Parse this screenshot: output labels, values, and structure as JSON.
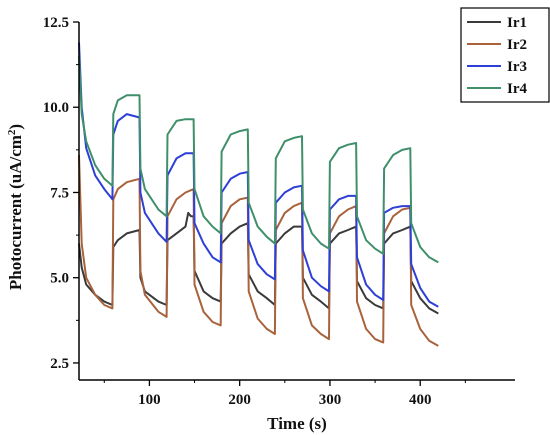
{
  "chart_data": {
    "type": "line",
    "xlabel": "Time (s)",
    "ylabel_main": "Photocurrent (uA/cm",
    "ylabel_sup": "2",
    "ylabel_tail": ")",
    "xlim": [
      22,
      505
    ],
    "ylim": [
      2.0,
      12.5
    ],
    "xticks": [
      100,
      200,
      300,
      400
    ],
    "yticks": [
      2.5,
      5.0,
      7.5,
      10.0,
      12.5
    ],
    "ytick_labels": [
      "2.5",
      "5.0",
      "7.5",
      "10.0",
      "12.5"
    ],
    "grid": false,
    "legend_position": "top-right",
    "light_cycle": {
      "on_times": [
        60,
        120,
        180,
        240,
        300,
        360
      ],
      "off_times": [
        30,
        90,
        150,
        210,
        270,
        330,
        390
      ],
      "end": 420
    },
    "series": [
      {
        "name": "Ir1",
        "color": "#3a3a3a",
        "points": [
          [
            22,
            6.0
          ],
          [
            25,
            5.3
          ],
          [
            30,
            4.8
          ],
          [
            40,
            4.5
          ],
          [
            50,
            4.3
          ],
          [
            59,
            4.2
          ],
          [
            60,
            5.9
          ],
          [
            65,
            6.1
          ],
          [
            75,
            6.3
          ],
          [
            89,
            6.4
          ],
          [
            90,
            5.0
          ],
          [
            95,
            4.6
          ],
          [
            110,
            4.3
          ],
          [
            119,
            4.2
          ],
          [
            120,
            6.1
          ],
          [
            130,
            6.3
          ],
          [
            140,
            6.5
          ],
          [
            143,
            6.9
          ],
          [
            146,
            6.8
          ],
          [
            149,
            6.8
          ],
          [
            150,
            5.2
          ],
          [
            160,
            4.6
          ],
          [
            170,
            4.4
          ],
          [
            179,
            4.3
          ],
          [
            180,
            6.0
          ],
          [
            190,
            6.3
          ],
          [
            200,
            6.5
          ],
          [
            209,
            6.6
          ],
          [
            210,
            5.1
          ],
          [
            220,
            4.6
          ],
          [
            230,
            4.4
          ],
          [
            239,
            4.2
          ],
          [
            240,
            6.0
          ],
          [
            250,
            6.3
          ],
          [
            260,
            6.5
          ],
          [
            269,
            6.5
          ],
          [
            270,
            5.0
          ],
          [
            280,
            4.5
          ],
          [
            290,
            4.3
          ],
          [
            299,
            4.1
          ],
          [
            300,
            6.0
          ],
          [
            310,
            6.3
          ],
          [
            320,
            6.4
          ],
          [
            329,
            6.5
          ],
          [
            330,
            4.9
          ],
          [
            340,
            4.4
          ],
          [
            350,
            4.2
          ],
          [
            359,
            4.1
          ],
          [
            360,
            6.0
          ],
          [
            370,
            6.3
          ],
          [
            380,
            6.4
          ],
          [
            389,
            6.5
          ],
          [
            390,
            4.9
          ],
          [
            400,
            4.4
          ],
          [
            410,
            4.1
          ],
          [
            420,
            3.95
          ]
        ]
      },
      {
        "name": "Ir2",
        "color": "#a8633c",
        "points": [
          [
            22,
            8.6
          ],
          [
            25,
            6.0
          ],
          [
            30,
            5.0
          ],
          [
            40,
            4.5
          ],
          [
            50,
            4.2
          ],
          [
            59,
            4.1
          ],
          [
            60,
            7.3
          ],
          [
            65,
            7.6
          ],
          [
            75,
            7.8
          ],
          [
            89,
            7.9
          ],
          [
            90,
            5.2
          ],
          [
            95,
            4.5
          ],
          [
            110,
            4.0
          ],
          [
            119,
            3.85
          ],
          [
            120,
            6.8
          ],
          [
            130,
            7.3
          ],
          [
            140,
            7.5
          ],
          [
            149,
            7.6
          ],
          [
            150,
            4.8
          ],
          [
            160,
            4.0
          ],
          [
            170,
            3.7
          ],
          [
            179,
            3.6
          ],
          [
            180,
            6.6
          ],
          [
            190,
            7.1
          ],
          [
            200,
            7.3
          ],
          [
            209,
            7.35
          ],
          [
            210,
            4.6
          ],
          [
            220,
            3.8
          ],
          [
            230,
            3.5
          ],
          [
            239,
            3.35
          ],
          [
            240,
            6.4
          ],
          [
            250,
            6.9
          ],
          [
            260,
            7.1
          ],
          [
            269,
            7.2
          ],
          [
            270,
            4.4
          ],
          [
            280,
            3.6
          ],
          [
            290,
            3.35
          ],
          [
            299,
            3.2
          ],
          [
            300,
            6.3
          ],
          [
            310,
            6.8
          ],
          [
            320,
            7.0
          ],
          [
            329,
            7.1
          ],
          [
            330,
            4.3
          ],
          [
            340,
            3.5
          ],
          [
            350,
            3.2
          ],
          [
            359,
            3.1
          ],
          [
            360,
            6.3
          ],
          [
            370,
            6.8
          ],
          [
            380,
            7.0
          ],
          [
            389,
            7.05
          ],
          [
            390,
            4.2
          ],
          [
            400,
            3.5
          ],
          [
            410,
            3.15
          ],
          [
            420,
            3.0
          ]
        ]
      },
      {
        "name": "Ir3",
        "color": "#2e3fd6",
        "points": [
          [
            22,
            11.9
          ],
          [
            25,
            10.0
          ],
          [
            30,
            8.8
          ],
          [
            40,
            8.0
          ],
          [
            50,
            7.6
          ],
          [
            59,
            7.3
          ],
          [
            60,
            9.2
          ],
          [
            65,
            9.6
          ],
          [
            75,
            9.8
          ],
          [
            89,
            9.7
          ],
          [
            90,
            7.5
          ],
          [
            95,
            6.9
          ],
          [
            110,
            6.3
          ],
          [
            119,
            6.05
          ],
          [
            120,
            8.0
          ],
          [
            130,
            8.5
          ],
          [
            140,
            8.65
          ],
          [
            149,
            8.65
          ],
          [
            150,
            6.6
          ],
          [
            160,
            6.0
          ],
          [
            170,
            5.6
          ],
          [
            179,
            5.45
          ],
          [
            180,
            7.5
          ],
          [
            190,
            7.9
          ],
          [
            200,
            8.05
          ],
          [
            209,
            8.1
          ],
          [
            210,
            6.1
          ],
          [
            220,
            5.4
          ],
          [
            230,
            5.1
          ],
          [
            239,
            4.95
          ],
          [
            240,
            7.2
          ],
          [
            250,
            7.5
          ],
          [
            260,
            7.65
          ],
          [
            269,
            7.7
          ],
          [
            270,
            5.8
          ],
          [
            280,
            5.0
          ],
          [
            290,
            4.75
          ],
          [
            299,
            4.6
          ],
          [
            300,
            7.0
          ],
          [
            310,
            7.3
          ],
          [
            320,
            7.4
          ],
          [
            329,
            7.4
          ],
          [
            330,
            5.6
          ],
          [
            340,
            4.8
          ],
          [
            350,
            4.5
          ],
          [
            359,
            4.35
          ],
          [
            360,
            6.9
          ],
          [
            370,
            7.05
          ],
          [
            380,
            7.1
          ],
          [
            389,
            7.1
          ],
          [
            390,
            5.4
          ],
          [
            400,
            4.7
          ],
          [
            410,
            4.3
          ],
          [
            420,
            4.15
          ]
        ]
      },
      {
        "name": "Ir4",
        "color": "#3f8f6b",
        "points": [
          [
            22,
            11.5
          ],
          [
            25,
            9.8
          ],
          [
            30,
            9.0
          ],
          [
            40,
            8.3
          ],
          [
            50,
            7.9
          ],
          [
            59,
            7.7
          ],
          [
            60,
            9.8
          ],
          [
            65,
            10.2
          ],
          [
            75,
            10.35
          ],
          [
            89,
            10.35
          ],
          [
            90,
            8.2
          ],
          [
            95,
            7.6
          ],
          [
            110,
            7.0
          ],
          [
            119,
            6.8
          ],
          [
            120,
            9.2
          ],
          [
            130,
            9.6
          ],
          [
            140,
            9.65
          ],
          [
            149,
            9.65
          ],
          [
            150,
            7.6
          ],
          [
            160,
            6.8
          ],
          [
            170,
            6.5
          ],
          [
            179,
            6.3
          ],
          [
            180,
            8.7
          ],
          [
            190,
            9.2
          ],
          [
            200,
            9.3
          ],
          [
            209,
            9.35
          ],
          [
            210,
            7.2
          ],
          [
            220,
            6.5
          ],
          [
            230,
            6.2
          ],
          [
            239,
            6.0
          ],
          [
            240,
            8.5
          ],
          [
            250,
            9.0
          ],
          [
            260,
            9.1
          ],
          [
            269,
            9.15
          ],
          [
            270,
            7.0
          ],
          [
            280,
            6.3
          ],
          [
            290,
            6.0
          ],
          [
            299,
            5.85
          ],
          [
            300,
            8.4
          ],
          [
            310,
            8.8
          ],
          [
            320,
            8.9
          ],
          [
            329,
            8.95
          ],
          [
            330,
            6.8
          ],
          [
            340,
            6.1
          ],
          [
            350,
            5.85
          ],
          [
            359,
            5.7
          ],
          [
            360,
            8.2
          ],
          [
            370,
            8.6
          ],
          [
            380,
            8.75
          ],
          [
            389,
            8.8
          ],
          [
            390,
            6.6
          ],
          [
            400,
            5.9
          ],
          [
            410,
            5.6
          ],
          [
            420,
            5.45
          ]
        ]
      }
    ]
  }
}
